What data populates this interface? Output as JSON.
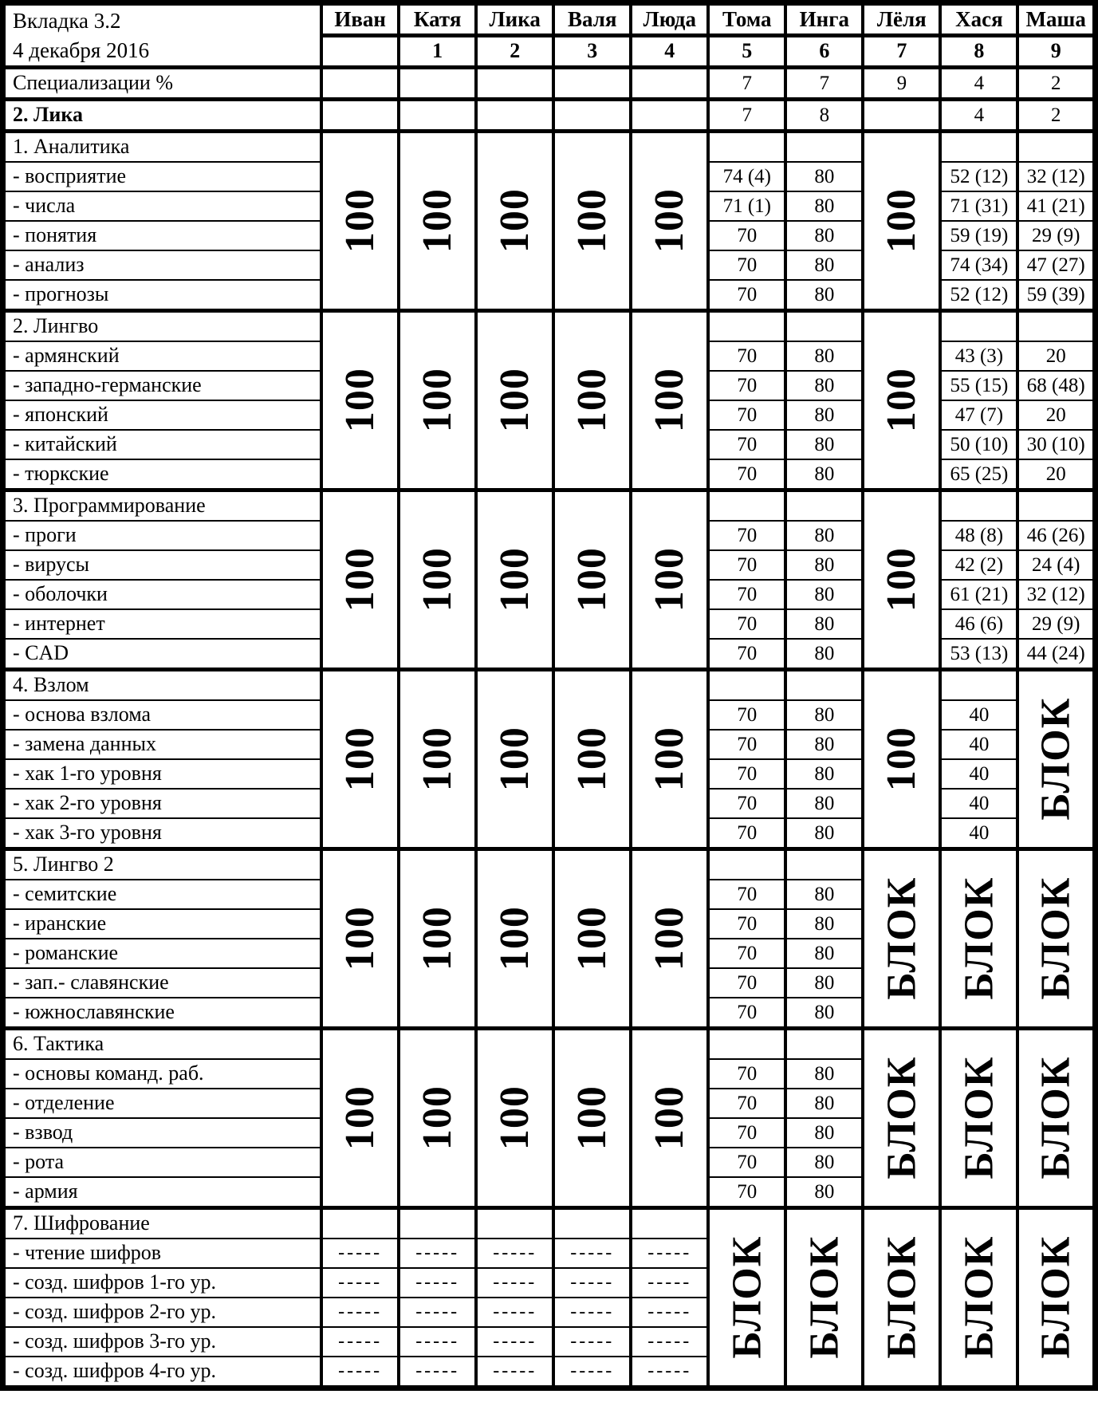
{
  "header": {
    "title_line1": "Вкладка 3.2",
    "title_line2": "4 декабря 2016",
    "columns": [
      {
        "name": "Иван",
        "num": ""
      },
      {
        "name": "Катя",
        "num": "1"
      },
      {
        "name": "Лика",
        "num": "2"
      },
      {
        "name": "Валя",
        "num": "3"
      },
      {
        "name": "Люда",
        "num": "4"
      },
      {
        "name": "Тома",
        "num": "5"
      },
      {
        "name": "Инга",
        "num": "6"
      },
      {
        "name": "Лёля",
        "num": "7"
      },
      {
        "name": "Хася",
        "num": "8"
      },
      {
        "name": "Маша",
        "num": "9"
      }
    ]
  },
  "info_rows": [
    {
      "label": "Специализации %",
      "bold": false,
      "values": [
        "",
        "",
        "",
        "",
        "",
        "7",
        "7",
        "9",
        "4",
        "2"
      ]
    },
    {
      "label": "2. Лика",
      "bold": true,
      "values": [
        "",
        "",
        "",
        "",
        "",
        "7",
        "8",
        "",
        "4",
        "2"
      ]
    }
  ],
  "sections": [
    {
      "title": "1. Аналитика",
      "rows": [
        "- восприятие",
        "- числа",
        "- понятия",
        "- анализ",
        "- прогнозы"
      ],
      "cols": [
        {
          "type": "span",
          "text": "100"
        },
        {
          "type": "span",
          "text": "100"
        },
        {
          "type": "span",
          "text": "100"
        },
        {
          "type": "span",
          "text": "100"
        },
        {
          "type": "span",
          "text": "100"
        },
        {
          "type": "cells",
          "values": [
            "",
            "74 (4)",
            "71 (1)",
            "70",
            "70",
            "70"
          ]
        },
        {
          "type": "cells",
          "values": [
            "",
            "80",
            "80",
            "80",
            "80",
            "80"
          ]
        },
        {
          "type": "span",
          "text": "100"
        },
        {
          "type": "cells",
          "values": [
            "",
            "52 (12)",
            "71 (31)",
            "59 (19)",
            "74 (34)",
            "52 (12)"
          ]
        },
        {
          "type": "cells",
          "values": [
            "",
            "32 (12)",
            "41 (21)",
            "29 (9)",
            "47 (27)",
            "59 (39)"
          ]
        }
      ]
    },
    {
      "title": "2. Лингво",
      "rows": [
        "- армянский",
        "- западно-германские",
        "- японский",
        "- китайский",
        "- тюркские"
      ],
      "cols": [
        {
          "type": "span",
          "text": "100"
        },
        {
          "type": "span",
          "text": "100"
        },
        {
          "type": "span",
          "text": "100"
        },
        {
          "type": "span",
          "text": "100"
        },
        {
          "type": "span",
          "text": "100"
        },
        {
          "type": "cells",
          "values": [
            "",
            "70",
            "70",
            "70",
            "70",
            "70"
          ]
        },
        {
          "type": "cells",
          "values": [
            "",
            "80",
            "80",
            "80",
            "80",
            "80"
          ]
        },
        {
          "type": "span",
          "text": "100"
        },
        {
          "type": "cells",
          "values": [
            "",
            "43 (3)",
            "55 (15)",
            "47 (7)",
            "50 (10)",
            "65 (25)"
          ]
        },
        {
          "type": "cells",
          "values": [
            "",
            "20",
            "68 (48)",
            "20",
            "30 (10)",
            "20"
          ]
        }
      ]
    },
    {
      "title": "3. Программирование",
      "rows": [
        "- проги",
        "- вирусы",
        "- оболочки",
        "- интернет",
        "- CAD"
      ],
      "cols": [
        {
          "type": "span",
          "text": "100"
        },
        {
          "type": "span",
          "text": "100"
        },
        {
          "type": "span",
          "text": "100"
        },
        {
          "type": "span",
          "text": "100"
        },
        {
          "type": "span",
          "text": "100"
        },
        {
          "type": "cells",
          "values": [
            "",
            "70",
            "70",
            "70",
            "70",
            "70"
          ]
        },
        {
          "type": "cells",
          "values": [
            "",
            "80",
            "80",
            "80",
            "80",
            "80"
          ]
        },
        {
          "type": "span",
          "text": "100"
        },
        {
          "type": "cells",
          "values": [
            "",
            "48 (8)",
            "42 (2)",
            "61 (21)",
            "46 (6)",
            "53 (13)"
          ]
        },
        {
          "type": "cells",
          "values": [
            "",
            "46 (26)",
            "24 (4)",
            "32 (12)",
            "29 (9)",
            "44 (24)"
          ]
        }
      ]
    },
    {
      "title": "4. Взлом",
      "rows": [
        "- основа взлома",
        "- замена данных",
        "- хак 1-го уровня",
        "- хак 2-го уровня",
        "- хак 3-го уровня"
      ],
      "cols": [
        {
          "type": "span",
          "text": "100"
        },
        {
          "type": "span",
          "text": "100"
        },
        {
          "type": "span",
          "text": "100"
        },
        {
          "type": "span",
          "text": "100"
        },
        {
          "type": "span",
          "text": "100"
        },
        {
          "type": "cells",
          "values": [
            "",
            "70",
            "70",
            "70",
            "70",
            "70"
          ]
        },
        {
          "type": "cells",
          "values": [
            "",
            "80",
            "80",
            "80",
            "80",
            "80"
          ]
        },
        {
          "type": "span",
          "text": "100"
        },
        {
          "type": "cells",
          "values": [
            "",
            "40",
            "40",
            "40",
            "40",
            "40"
          ]
        },
        {
          "type": "span",
          "text": "БЛОК"
        }
      ]
    },
    {
      "title": "5. Лингво 2",
      "rows": [
        "- семитские",
        "- иранские",
        "- романские",
        "- зап.- славянские",
        "- южнославянские"
      ],
      "cols": [
        {
          "type": "span",
          "text": "100"
        },
        {
          "type": "span",
          "text": "100"
        },
        {
          "type": "span",
          "text": "100"
        },
        {
          "type": "span",
          "text": "100"
        },
        {
          "type": "span",
          "text": "100"
        },
        {
          "type": "cells",
          "values": [
            "",
            "70",
            "70",
            "70",
            "70",
            "70"
          ]
        },
        {
          "type": "cells",
          "values": [
            "",
            "80",
            "80",
            "80",
            "80",
            "80"
          ]
        },
        {
          "type": "span",
          "text": "БЛОК"
        },
        {
          "type": "span",
          "text": "БЛОК"
        },
        {
          "type": "span",
          "text": "БЛОК"
        }
      ]
    },
    {
      "title": "6. Тактика",
      "rows": [
        "- основы команд. раб.",
        "- отделение",
        "- взвод",
        "- рота",
        "- армия"
      ],
      "cols": [
        {
          "type": "span",
          "text": "100"
        },
        {
          "type": "span",
          "text": "100"
        },
        {
          "type": "span",
          "text": "100"
        },
        {
          "type": "span",
          "text": "100"
        },
        {
          "type": "span",
          "text": "100"
        },
        {
          "type": "cells",
          "values": [
            "",
            "70",
            "70",
            "70",
            "70",
            "70"
          ]
        },
        {
          "type": "cells",
          "values": [
            "",
            "80",
            "80",
            "80",
            "80",
            "80"
          ]
        },
        {
          "type": "span",
          "text": "БЛОК"
        },
        {
          "type": "span",
          "text": "БЛОК"
        },
        {
          "type": "span",
          "text": "БЛОК"
        }
      ]
    },
    {
      "title": "7. Шифрование",
      "rows": [
        "- чтение шифров",
        "- созд. шифров 1-го ур.",
        "- созд. шифров 2-го ур.",
        "- созд. шифров 3-го ур.",
        "- созд. шифров 4-го ур."
      ],
      "cols": [
        {
          "type": "cells",
          "values": [
            "",
            "-----",
            "-----",
            "-----",
            "-----",
            "-----"
          ]
        },
        {
          "type": "cells",
          "values": [
            "",
            "-----",
            "-----",
            "-----",
            "-----",
            "-----"
          ]
        },
        {
          "type": "cells",
          "values": [
            "",
            "-----",
            "-----",
            "-----",
            "-----",
            "-----"
          ]
        },
        {
          "type": "cells",
          "values": [
            "",
            "-----",
            "-----",
            "-----",
            "-----",
            "-----"
          ]
        },
        {
          "type": "cells",
          "values": [
            "",
            "-----",
            "-----",
            "-----",
            "-----",
            "-----"
          ]
        },
        {
          "type": "span",
          "text": "БЛОК"
        },
        {
          "type": "span",
          "text": "БЛОК"
        },
        {
          "type": "span",
          "text": "БЛОК"
        },
        {
          "type": "span",
          "text": "БЛОК"
        },
        {
          "type": "span",
          "text": "БЛОК"
        }
      ]
    }
  ]
}
